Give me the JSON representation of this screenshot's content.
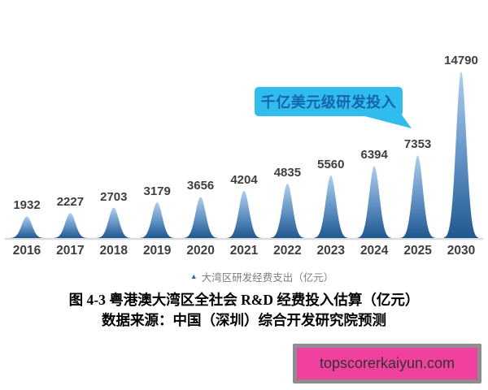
{
  "chart_data": {
    "type": "area",
    "categories": [
      "2016",
      "2017",
      "2018",
      "2019",
      "2020",
      "2021",
      "2022",
      "2023",
      "2024",
      "2025",
      "2030"
    ],
    "values": [
      1932,
      2227,
      2703,
      3179,
      3656,
      4204,
      4835,
      5560,
      6394,
      7353,
      14790
    ],
    "title": "",
    "xlabel": "",
    "ylabel": "",
    "ylim": [
      0,
      14790
    ],
    "grid": false,
    "legend_position": "bottom-center",
    "colors": {
      "peak_gradient_top": "#aecfec",
      "peak_gradient_bottom": "#1f5890",
      "axis_line": "#dcdcdc",
      "value_label": "#3e3e3e",
      "tick_label": "#3e3e3e"
    }
  },
  "callout": {
    "text": "千亿美元级研发投入",
    "bg_color": "#30bcec",
    "text_color": "#1564ab"
  },
  "legend": {
    "marker": "▲",
    "marker_color": "#2e6ca6",
    "label": "大湾区研发经费支出（亿元）"
  },
  "caption": {
    "line1": "图 4-3 粤港澳大湾区全社会 R&D 经费投入估算（亿元）",
    "line2": "数据来源：中国（深圳）综合开发研究院预测"
  },
  "watermark": {
    "text": "topscorerkaiyun.com",
    "bg_color": "#f0419e",
    "border_color": "#8d8d8d"
  }
}
